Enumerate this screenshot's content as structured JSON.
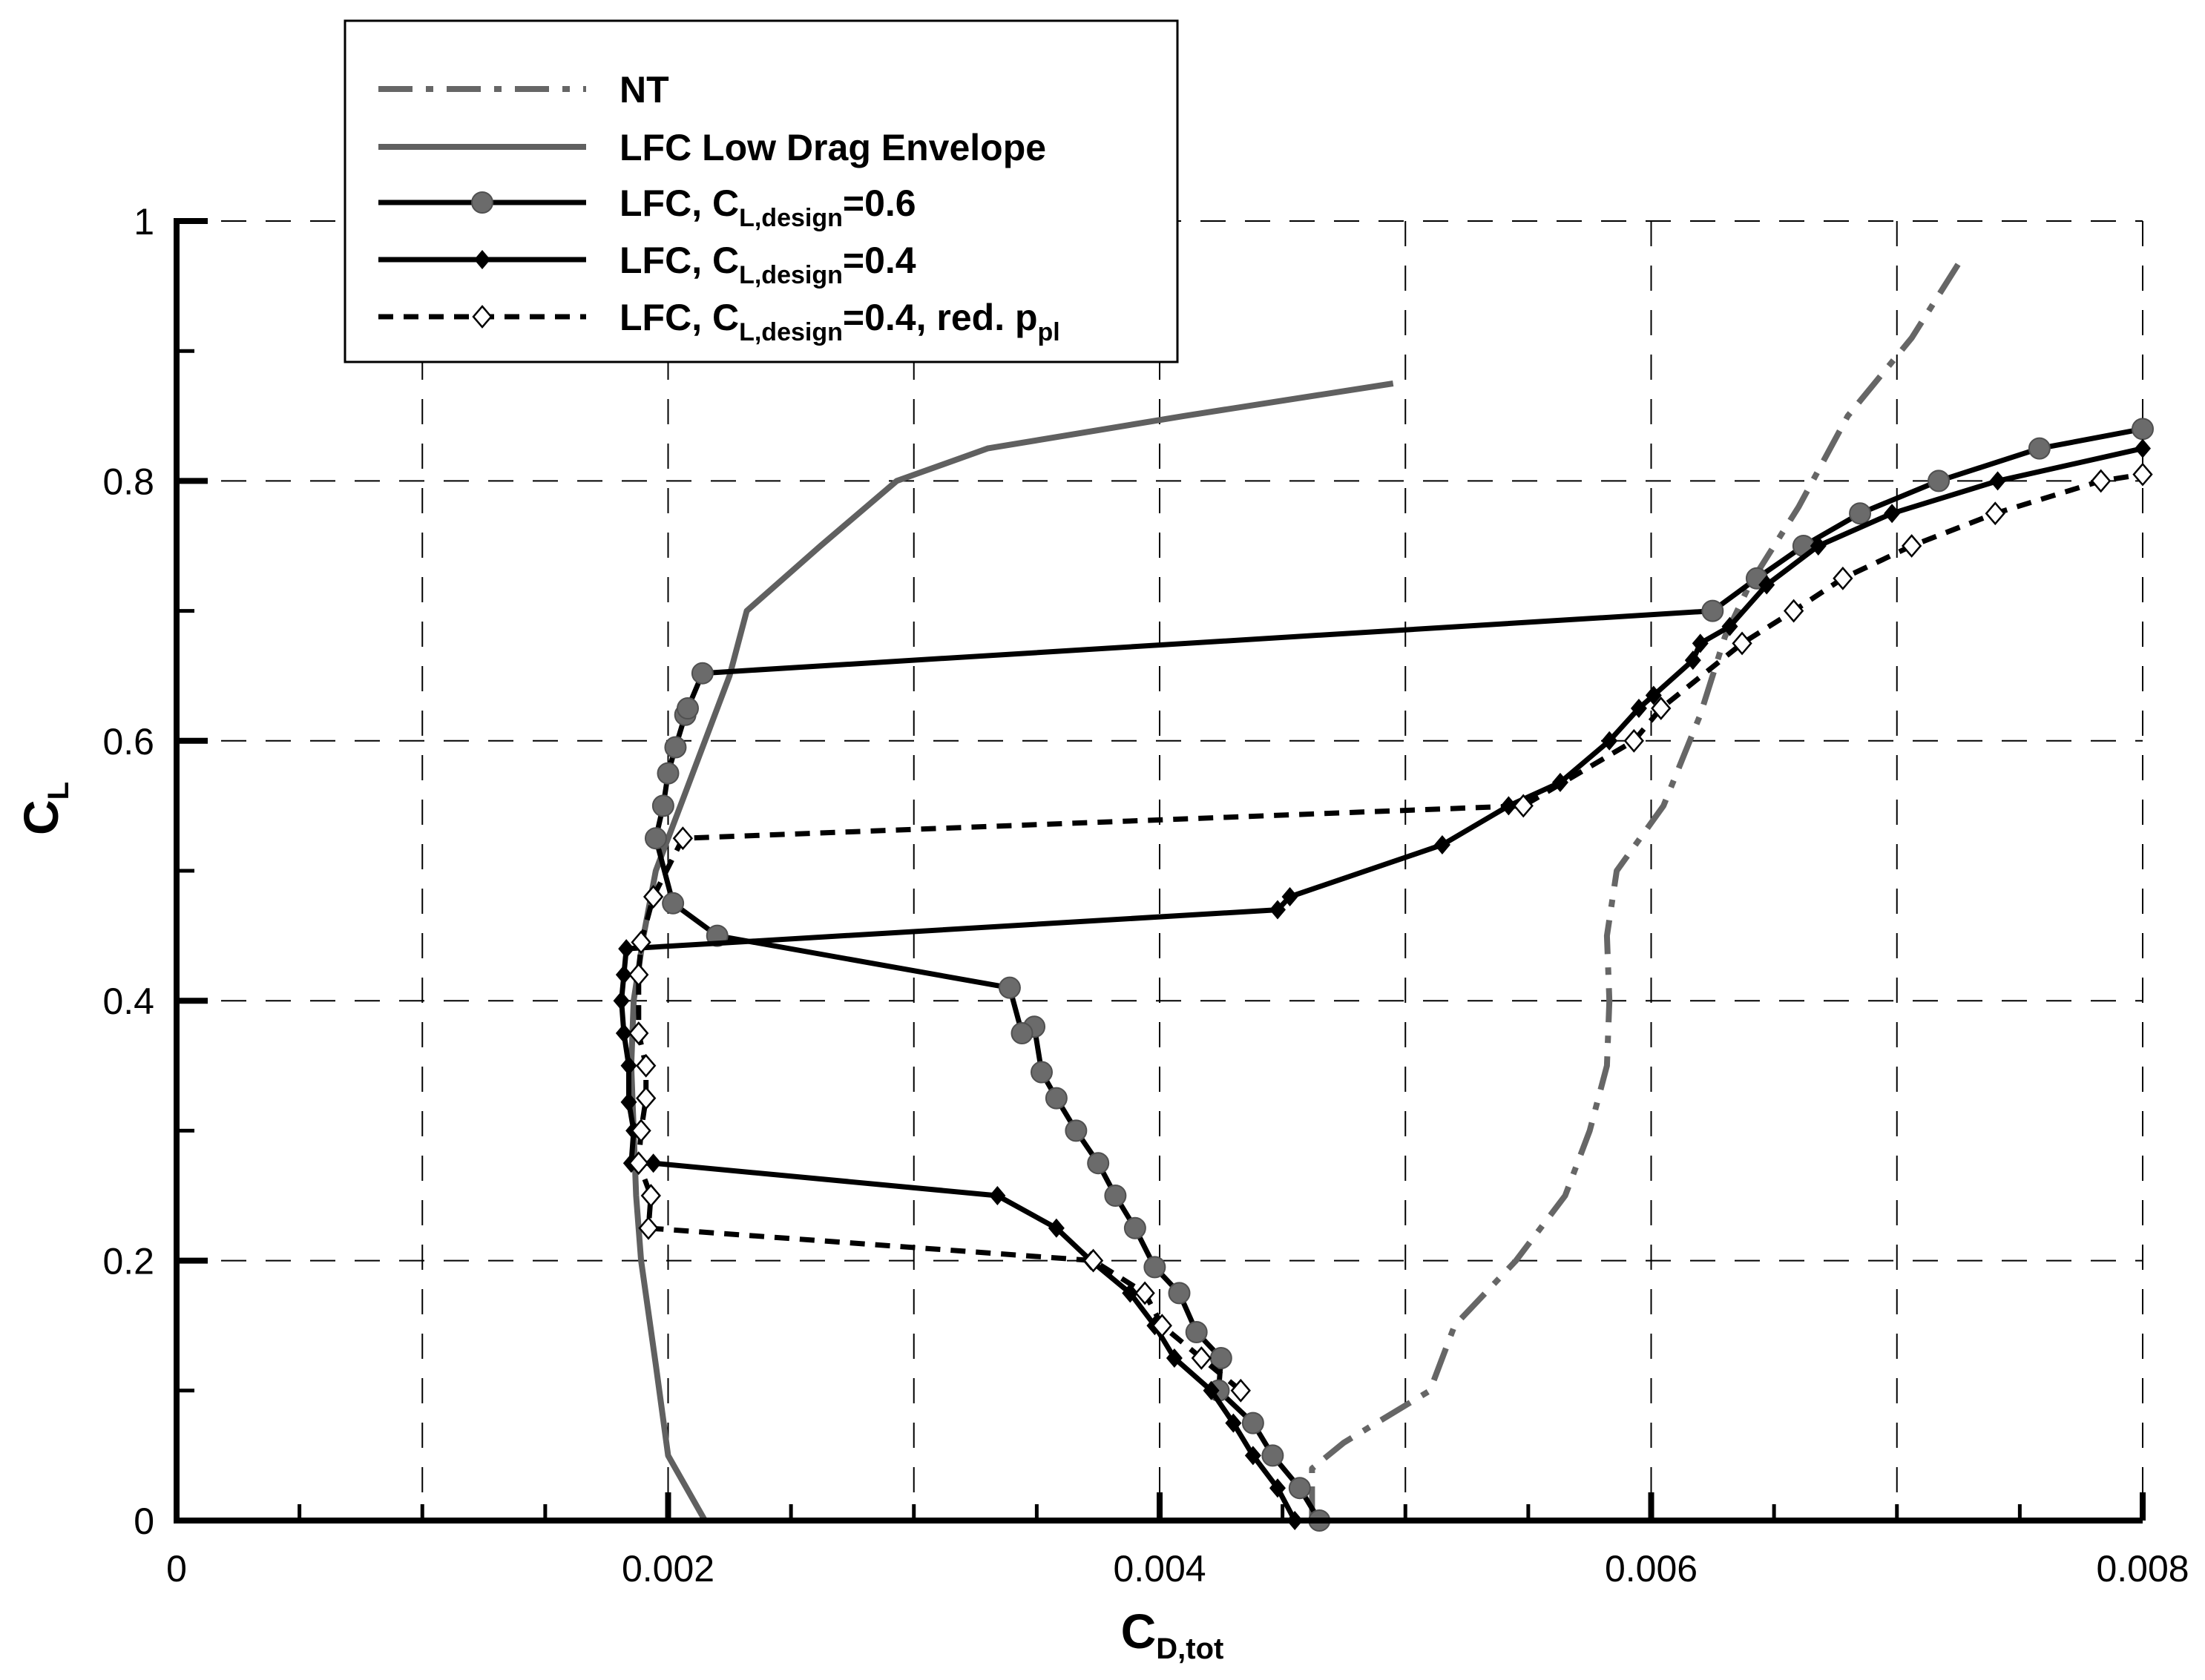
{
  "chart_data": {
    "type": "line",
    "xlabel": {
      "main": "C",
      "sub": "D,tot"
    },
    "ylabel": {
      "main": "C",
      "sub": "L"
    },
    "xlim": [
      0,
      0.008
    ],
    "ylim": [
      0,
      1
    ],
    "xticks": [
      {
        "value": 0,
        "label": "0"
      },
      {
        "value": 0.002,
        "label": "0.002"
      },
      {
        "value": 0.004,
        "label": "0.004"
      },
      {
        "value": 0.006,
        "label": "0.006"
      },
      {
        "value": 0.008,
        "label": "0.008"
      }
    ],
    "yticks": [
      {
        "value": 0,
        "label": "0"
      },
      {
        "value": 0.2,
        "label": "0.2"
      },
      {
        "value": 0.4,
        "label": "0.4"
      },
      {
        "value": 0.6,
        "label": "0.6"
      },
      {
        "value": 0.8,
        "label": "0.8"
      },
      {
        "value": 1,
        "label": "1"
      }
    ],
    "grid": true,
    "legend_position": "top-left",
    "series": [
      {
        "id": "nt",
        "name": "NT",
        "legend": [
          {
            "text": "NT",
            "sub": false
          }
        ],
        "color": "#666666",
        "dash": "dashdot",
        "marker": "none",
        "points": [
          [
            0.00462,
            0
          ],
          [
            0.00462,
            0.04
          ],
          [
            0.00475,
            0.06
          ],
          [
            0.0051,
            0.1
          ],
          [
            0.0052,
            0.15
          ],
          [
            0.00545,
            0.2
          ],
          [
            0.00565,
            0.25
          ],
          [
            0.00575,
            0.3
          ],
          [
            0.00582,
            0.35
          ],
          [
            0.00583,
            0.4
          ],
          [
            0.00582,
            0.45
          ],
          [
            0.00586,
            0.5
          ],
          [
            0.00605,
            0.55
          ],
          [
            0.0062,
            0.62
          ],
          [
            0.0063,
            0.68
          ],
          [
            0.0064,
            0.72
          ],
          [
            0.0066,
            0.78
          ],
          [
            0.0068,
            0.85
          ],
          [
            0.00706,
            0.91
          ],
          [
            0.00726,
            0.97
          ]
        ]
      },
      {
        "id": "envelope",
        "name": "LFC Low Drag Envelope",
        "legend": [
          {
            "text": "LFC Low Drag Envelope",
            "sub": false
          }
        ],
        "color": "#606060",
        "dash": "solid",
        "marker": "none",
        "points": [
          [
            0.00215,
            0
          ],
          [
            0.002,
            0.05
          ],
          [
            0.00195,
            0.12
          ],
          [
            0.00189,
            0.2
          ],
          [
            0.00187,
            0.25
          ],
          [
            0.00186,
            0.3
          ],
          [
            0.00185,
            0.35
          ],
          [
            0.00186,
            0.4
          ],
          [
            0.0019,
            0.45
          ],
          [
            0.00195,
            0.5
          ],
          [
            0.00205,
            0.55
          ],
          [
            0.00215,
            0.6
          ],
          [
            0.00225,
            0.65
          ],
          [
            0.00232,
            0.7
          ],
          [
            0.00262,
            0.75
          ],
          [
            0.00293,
            0.8
          ],
          [
            0.0033,
            0.825
          ],
          [
            0.0041,
            0.85
          ],
          [
            0.00495,
            0.875
          ]
        ]
      },
      {
        "id": "cl06",
        "name": "LFC, CL,design=0.6",
        "legend": [
          {
            "text": "LFC, C",
            "sub": false
          },
          {
            "text": "L,design",
            "sub": true
          },
          {
            "text": "=0.6",
            "sub": false
          }
        ],
        "color": "#000000",
        "dash": "solid",
        "marker": "circle",
        "points": [
          [
            0.00465,
            0
          ],
          [
            0.00457,
            0.025
          ],
          [
            0.00446,
            0.05
          ],
          [
            0.00438,
            0.075
          ],
          [
            0.00424,
            0.1
          ],
          [
            0.00425,
            0.125
          ],
          [
            0.00415,
            0.145
          ],
          [
            0.00408,
            0.175
          ],
          [
            0.00398,
            0.195
          ],
          [
            0.0039,
            0.225
          ],
          [
            0.00382,
            0.25
          ],
          [
            0.00375,
            0.275
          ],
          [
            0.00366,
            0.3
          ],
          [
            0.00358,
            0.325
          ],
          [
            0.00352,
            0.345
          ],
          [
            0.00349,
            0.38
          ],
          [
            0.00344,
            0.375
          ],
          [
            0.00339,
            0.41
          ],
          [
            0.0022,
            0.45
          ],
          [
            0.00202,
            0.475
          ],
          [
            0.00195,
            0.525
          ],
          [
            0.00198,
            0.55
          ],
          [
            0.002,
            0.575
          ],
          [
            0.00203,
            0.595
          ],
          [
            0.00207,
            0.62
          ],
          [
            0.00208,
            0.625
          ],
          [
            0.00214,
            0.652
          ],
          [
            0.00625,
            0.7
          ],
          [
            0.00643,
            0.725
          ],
          [
            0.00662,
            0.75
          ],
          [
            0.00685,
            0.775
          ],
          [
            0.00717,
            0.8
          ],
          [
            0.00758,
            0.825
          ],
          [
            0.008,
            0.84
          ]
        ]
      },
      {
        "id": "cl04",
        "name": "LFC, CL,design=0.4",
        "legend": [
          {
            "text": "LFC, C",
            "sub": false
          },
          {
            "text": "L,design",
            "sub": true
          },
          {
            "text": "=0.4",
            "sub": false
          }
        ],
        "color": "#000000",
        "dash": "solid",
        "marker": "diamond",
        "points": [
          [
            0.00455,
            0
          ],
          [
            0.00448,
            0.025
          ],
          [
            0.00438,
            0.05
          ],
          [
            0.0043,
            0.075
          ],
          [
            0.00421,
            0.1
          ],
          [
            0.00406,
            0.125
          ],
          [
            0.00398,
            0.15
          ],
          [
            0.00388,
            0.175
          ],
          [
            0.00372,
            0.2
          ],
          [
            0.00358,
            0.225
          ],
          [
            0.00334,
            0.25
          ],
          [
            0.00194,
            0.275
          ],
          [
            0.00185,
            0.275
          ],
          [
            0.00186,
            0.3
          ],
          [
            0.00184,
            0.322
          ],
          [
            0.00184,
            0.35
          ],
          [
            0.00182,
            0.375
          ],
          [
            0.00181,
            0.4
          ],
          [
            0.00182,
            0.42
          ],
          [
            0.00183,
            0.44
          ],
          [
            0.00448,
            0.47
          ],
          [
            0.00453,
            0.48
          ],
          [
            0.00515,
            0.52
          ],
          [
            0.00542,
            0.55
          ],
          [
            0.00563,
            0.568
          ],
          [
            0.00583,
            0.6
          ],
          [
            0.00595,
            0.625
          ],
          [
            0.00601,
            0.635
          ],
          [
            0.00617,
            0.662
          ],
          [
            0.0062,
            0.675
          ],
          [
            0.00632,
            0.688
          ],
          [
            0.00647,
            0.72
          ],
          [
            0.00668,
            0.75
          ],
          [
            0.00698,
            0.775
          ],
          [
            0.00741,
            0.8
          ],
          [
            0.008,
            0.825
          ]
        ]
      },
      {
        "id": "cl04red",
        "name": "LFC, CL,design=0.4, red. ppl",
        "legend": [
          {
            "text": "LFC, C",
            "sub": false
          },
          {
            "text": "L,design",
            "sub": true
          },
          {
            "text": "=0.4, red. p",
            "sub": false
          },
          {
            "text": "pl",
            "sub": true
          }
        ],
        "color": "#000000",
        "dash": "dashed",
        "marker": "diamond-open",
        "points": [
          [
            0.00433,
            0.1
          ],
          [
            0.00417,
            0.125
          ],
          [
            0.00401,
            0.15
          ],
          [
            0.00394,
            0.175
          ],
          [
            0.00373,
            0.2
          ],
          [
            0.00192,
            0.225
          ],
          [
            0.00193,
            0.25
          ],
          [
            0.00188,
            0.275
          ],
          [
            0.00189,
            0.3
          ],
          [
            0.00191,
            0.325
          ],
          [
            0.00191,
            0.35
          ],
          [
            0.00188,
            0.375
          ],
          [
            0.00188,
            0.42
          ],
          [
            0.00189,
            0.445
          ],
          [
            0.00194,
            0.48
          ],
          [
            0.00206,
            0.525
          ],
          [
            0.00548,
            0.55
          ],
          [
            0.00593,
            0.6
          ],
          [
            0.00604,
            0.625
          ],
          [
            0.00637,
            0.675
          ],
          [
            0.00658,
            0.7
          ],
          [
            0.00678,
            0.725
          ],
          [
            0.00706,
            0.75
          ],
          [
            0.0074,
            0.775
          ],
          [
            0.00783,
            0.8
          ],
          [
            0.008,
            0.805
          ]
        ]
      }
    ]
  }
}
